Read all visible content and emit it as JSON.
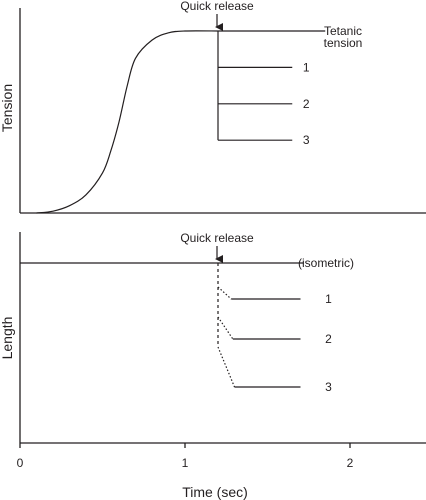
{
  "chart_data": [
    {
      "type": "line",
      "ylabel": "Tension",
      "annotation": "Quick release",
      "release_time": 1.2,
      "xlim": [
        0,
        2.5
      ],
      "ylim": [
        0,
        1.1
      ],
      "tetanic_label_line1": "Tetanic",
      "tetanic_label_line2": "tension",
      "rise": [
        [
          0.1,
          0.0
        ],
        [
          0.2,
          0.01
        ],
        [
          0.3,
          0.04
        ],
        [
          0.4,
          0.1
        ],
        [
          0.5,
          0.22
        ],
        [
          0.55,
          0.34
        ],
        [
          0.6,
          0.5
        ],
        [
          0.65,
          0.7
        ],
        [
          0.7,
          0.85
        ],
        [
          0.8,
          0.95
        ],
        [
          0.9,
          0.99
        ],
        [
          1.0,
          1.0
        ],
        [
          1.2,
          1.0
        ]
      ],
      "tetanic_end": 1.85,
      "series": [
        {
          "label": "1",
          "y": 0.8
        },
        {
          "label": "2",
          "y": 0.6
        },
        {
          "label": "3",
          "y": 0.4
        }
      ],
      "series_end": 1.65
    },
    {
      "type": "line",
      "ylabel": "Length",
      "xlabel": "Time (sec)",
      "annotation": "Quick release",
      "release_time": 1.2,
      "xlim": [
        0,
        2.5
      ],
      "ylim": [
        0,
        1.0
      ],
      "xticks": [
        "0",
        "1",
        "2"
      ],
      "isometric_label": "(isometric)",
      "isometric_y": 0.9,
      "isometric_end": 1.72,
      "series": [
        {
          "label": "1",
          "drop_y": 0.78,
          "bend_x": 1.28,
          "y": 0.72
        },
        {
          "label": "2",
          "drop_y": 0.63,
          "bend_x": 1.29,
          "y": 0.52
        },
        {
          "label": "3",
          "drop_y": 0.48,
          "bend_x": 1.3,
          "y": 0.28
        }
      ],
      "series_end": 1.7
    }
  ]
}
